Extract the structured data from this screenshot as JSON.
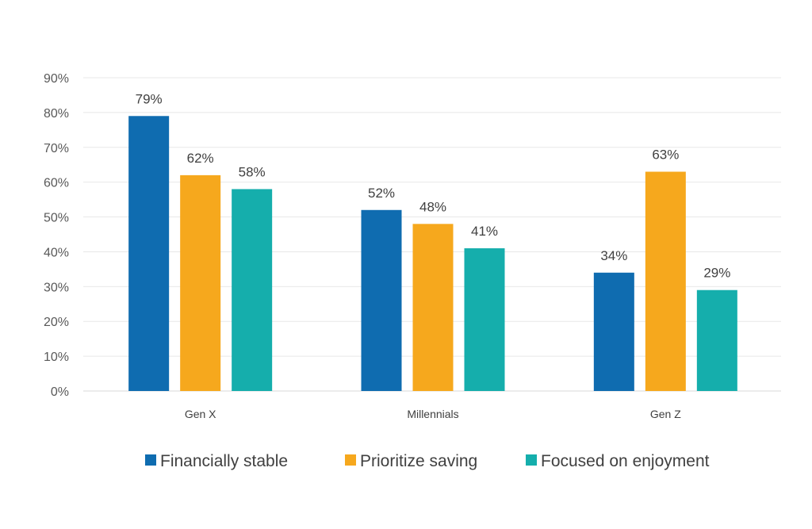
{
  "chart_data": {
    "type": "bar",
    "categories": [
      "Gen X",
      "Millennials",
      "Gen Z"
    ],
    "series": [
      {
        "name": "Financially stable",
        "values": [
          79,
          52,
          34
        ],
        "color": "#0f6cb0"
      },
      {
        "name": "Prioritize saving",
        "values": [
          62,
          48,
          63
        ],
        "color": "#f6a81d"
      },
      {
        "name": "Focused on enjoyment",
        "values": [
          58,
          41,
          29
        ],
        "color": "#15aeac"
      }
    ],
    "yticks": [
      "0%",
      "10%",
      "20%",
      "30%",
      "40%",
      "50%",
      "60%",
      "70%",
      "80%",
      "90%"
    ],
    "ylim": [
      0,
      90
    ],
    "value_suffix": "%",
    "grid": true,
    "legend": "bottom",
    "title": "",
    "xlabel": "",
    "ylabel": ""
  }
}
